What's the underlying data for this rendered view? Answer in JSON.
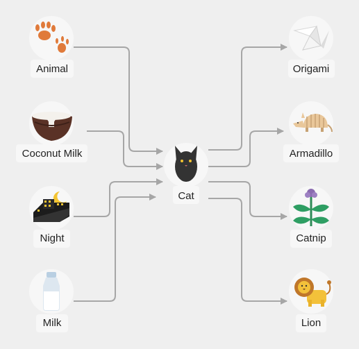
{
  "center": {
    "label": "Cat",
    "icon": "cat-icon"
  },
  "inputs": [
    {
      "label": "Animal",
      "icon": "paw-prints-icon"
    },
    {
      "label": "Coconut Milk",
      "icon": "coconut-icon"
    },
    {
      "label": "Night",
      "icon": "night-city-icon"
    },
    {
      "label": "Milk",
      "icon": "milk-bottle-icon"
    }
  ],
  "outputs": [
    {
      "label": "Origami",
      "icon": "origami-bird-icon"
    },
    {
      "label": "Armadillo",
      "icon": "armadillo-icon"
    },
    {
      "label": "Catnip",
      "icon": "catnip-plant-icon"
    },
    {
      "label": "Lion",
      "icon": "lion-icon"
    }
  ],
  "colors": {
    "background": "#efefef",
    "circle": "#f7f7f7",
    "connector": "#a6a6a6",
    "label_bg": "#f7f7f7"
  }
}
